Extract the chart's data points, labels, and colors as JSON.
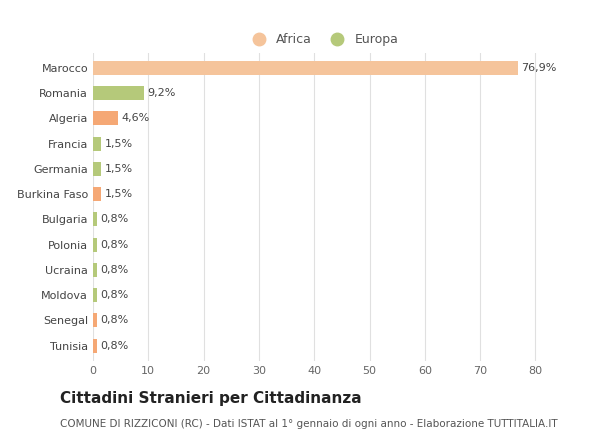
{
  "categories": [
    "Marocco",
    "Romania",
    "Algeria",
    "Francia",
    "Germania",
    "Burkina Faso",
    "Bulgaria",
    "Polonia",
    "Ucraina",
    "Moldova",
    "Senegal",
    "Tunisia"
  ],
  "values": [
    76.9,
    9.2,
    4.6,
    1.5,
    1.5,
    1.5,
    0.8,
    0.8,
    0.8,
    0.8,
    0.8,
    0.8
  ],
  "labels": [
    "76,9%",
    "9,2%",
    "4,6%",
    "1,5%",
    "1,5%",
    "1,5%",
    "0,8%",
    "0,8%",
    "0,8%",
    "0,8%",
    "0,8%",
    "0,8%"
  ],
  "colors": [
    "#f5c49b",
    "#b5c97a",
    "#f5a875",
    "#b5c97a",
    "#b5c97a",
    "#f5a875",
    "#b5c97a",
    "#b5c97a",
    "#b5c97a",
    "#b5c97a",
    "#f5a875",
    "#f5a875"
  ],
  "africa_color": "#f5c49b",
  "europa_color": "#b5c97a",
  "background_color": "#ffffff",
  "title": "Cittadini Stranieri per Cittadinanza",
  "subtitle": "COMUNE DI RIZZICONI (RC) - Dati ISTAT al 1° gennaio di ogni anno - Elaborazione TUTTITALIA.IT",
  "xlim": [
    0,
    83
  ],
  "xticks": [
    0,
    10,
    20,
    30,
    40,
    50,
    60,
    70,
    80
  ],
  "grid_color": "#e0e0e0",
  "bar_height": 0.55,
  "label_fontsize": 8,
  "tick_fontsize": 8,
  "title_fontsize": 11,
  "subtitle_fontsize": 7.5,
  "legend_fontsize": 9
}
